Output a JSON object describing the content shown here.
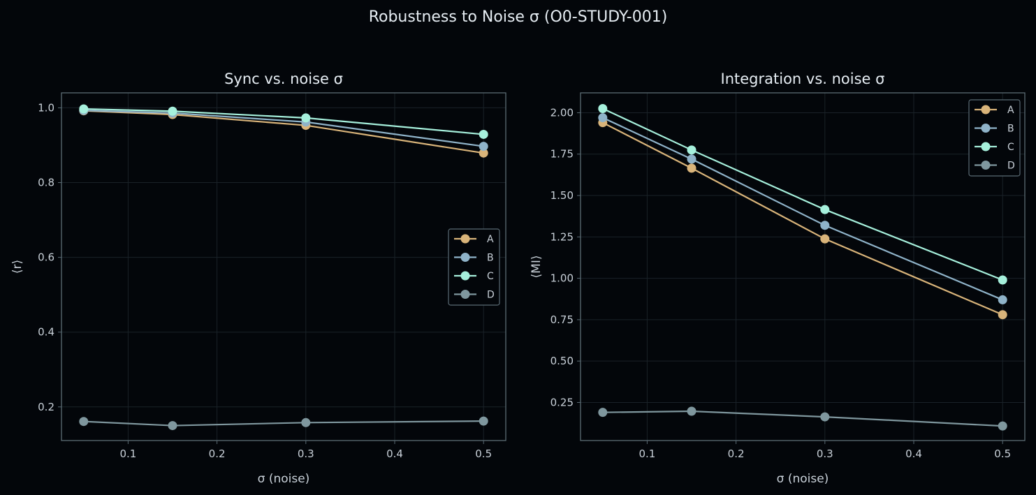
{
  "figure": {
    "title": "Robustness to Noise σ (O0-STUDY-001)"
  },
  "colors": {
    "A": "#d9b47a",
    "B": "#8fb3c9",
    "C": "#a6f0dc",
    "D": "#7f979e",
    "background": "#03060a",
    "frame": "#5a6b74",
    "grid": "#1a2228"
  },
  "chart_data": [
    {
      "type": "line",
      "title": "Sync vs. noise σ",
      "xlabel": "σ (noise)",
      "ylabel": "⟨r⟩",
      "x": [
        0.05,
        0.15,
        0.3,
        0.5
      ],
      "xlim": [
        0.025,
        0.525
      ],
      "ylim": [
        0.11,
        1.04
      ],
      "xticks": [
        0.1,
        0.2,
        0.3,
        0.4,
        0.5
      ],
      "xtick_labels": [
        "0.1",
        "0.2",
        "0.3",
        "0.4",
        "0.5"
      ],
      "yticks": [
        0.2,
        0.4,
        0.6,
        0.8,
        1.0
      ],
      "ytick_labels": [
        "0.2",
        "0.4",
        "0.6",
        "0.8",
        "1.0"
      ],
      "grid": true,
      "legend_position": "center-right",
      "series": [
        {
          "name": "A",
          "values": [
            0.992,
            0.982,
            0.953,
            0.879
          ]
        },
        {
          "name": "B",
          "values": [
            0.993,
            0.986,
            0.962,
            0.897
          ]
        },
        {
          "name": "C",
          "values": [
            0.997,
            0.991,
            0.973,
            0.929
          ]
        },
        {
          "name": "D",
          "values": [
            0.161,
            0.15,
            0.158,
            0.162
          ]
        }
      ]
    },
    {
      "type": "line",
      "title": "Integration vs. noise σ",
      "xlabel": "σ (noise)",
      "ylabel": "⟨MI⟩",
      "x": [
        0.05,
        0.15,
        0.3,
        0.5
      ],
      "xlim": [
        0.025,
        0.525
      ],
      "ylim": [
        0.02,
        2.12
      ],
      "xticks": [
        0.1,
        0.2,
        0.3,
        0.4,
        0.5
      ],
      "xtick_labels": [
        "0.1",
        "0.2",
        "0.3",
        "0.4",
        "0.5"
      ],
      "yticks": [
        0.25,
        0.5,
        0.75,
        1.0,
        1.25,
        1.5,
        1.75,
        2.0
      ],
      "ytick_labels": [
        "0.25",
        "0.50",
        "0.75",
        "1.00",
        "1.25",
        "1.50",
        "1.75",
        "2.00"
      ],
      "grid": true,
      "legend_position": "top-right",
      "series": [
        {
          "name": "A",
          "values": [
            1.94,
            1.665,
            1.238,
            0.78
          ]
        },
        {
          "name": "B",
          "values": [
            1.97,
            1.72,
            1.32,
            0.87
          ]
        },
        {
          "name": "C",
          "values": [
            2.025,
            1.775,
            1.415,
            0.99
          ]
        },
        {
          "name": "D",
          "values": [
            0.19,
            0.197,
            0.163,
            0.108
          ]
        }
      ]
    }
  ]
}
